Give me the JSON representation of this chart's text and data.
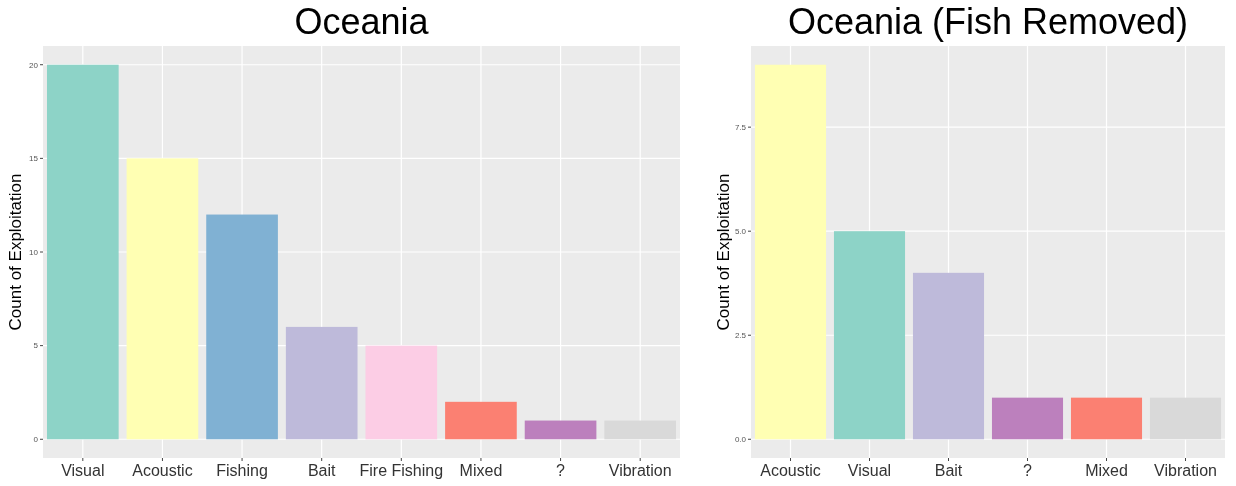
{
  "chart_data": [
    {
      "type": "bar",
      "title": "Oceania",
      "ylabel": "Count of Exploitation",
      "categories": [
        "Visual",
        "Acoustic",
        "Fishing",
        "Bait",
        "Fire Fishing",
        "Mixed",
        "?",
        "Vibration"
      ],
      "values": [
        20,
        15,
        12,
        6,
        5,
        2,
        1,
        1
      ],
      "colors": [
        "#8dd3c7",
        "#ffffb3",
        "#80b1d3",
        "#bebada",
        "#fccde5",
        "#fb8072",
        "#bc80bd",
        "#d9d9d9"
      ],
      "ylim": [
        -1,
        21
      ],
      "yticks": [
        0,
        5,
        10,
        15,
        20
      ],
      "grid": true
    },
    {
      "type": "bar",
      "title": "Oceania (Fish Removed)",
      "ylabel": "Count of Exploitation",
      "categories": [
        "Acoustic",
        "Visual",
        "Bait",
        "?",
        "Mixed",
        "Vibration"
      ],
      "values": [
        9,
        5,
        4,
        1,
        1,
        1
      ],
      "colors": [
        "#ffffb3",
        "#8dd3c7",
        "#bebada",
        "#bc80bd",
        "#fb8072",
        "#d9d9d9"
      ],
      "ylim": [
        -0.45,
        9.45
      ],
      "yticks": [
        {
          "value": 0,
          "label": "0.0"
        },
        {
          "value": 2.5,
          "label": "2.5"
        },
        {
          "value": 5,
          "label": "5.0"
        },
        {
          "value": 7.5,
          "label": "7.5"
        }
      ],
      "grid": true
    }
  ]
}
